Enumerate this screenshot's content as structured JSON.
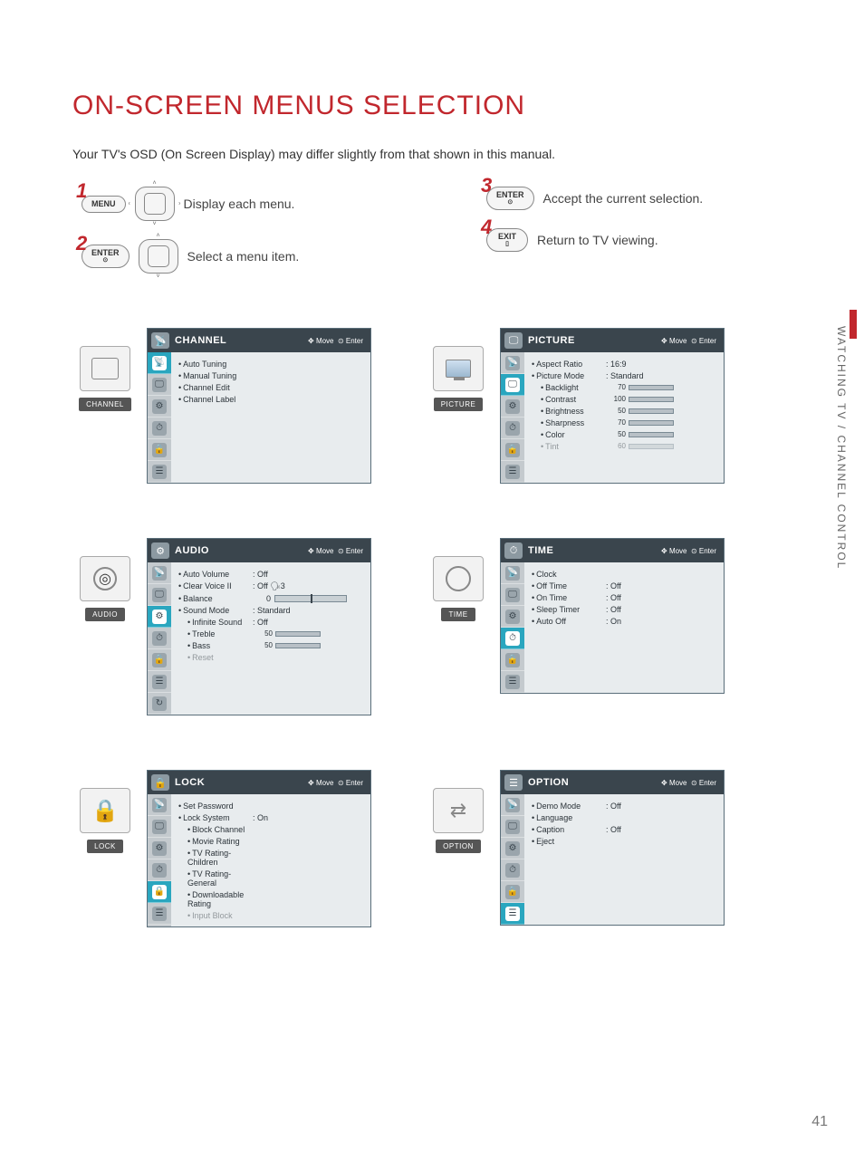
{
  "page": {
    "title": "ON-SCREEN MENUS SELECTION",
    "subtitle": "Your TV's OSD (On Screen Display) may differ slightly from that shown in this manual.",
    "side_label": "WATCHING TV / CHANNEL CONTROL",
    "number": "41"
  },
  "buttons": {
    "menu": "MENU",
    "enter": "ENTER",
    "exit": "EXIT"
  },
  "steps": {
    "s1": {
      "num": "1",
      "text": "Display each menu."
    },
    "s2": {
      "num": "2",
      "text": "Select a menu item."
    },
    "s3": {
      "num": "3",
      "text": "Accept the current selection."
    },
    "s4": {
      "num": "4",
      "text": "Return to TV viewing."
    }
  },
  "hints": {
    "move": "Move",
    "enter": "Enter"
  },
  "nav_icons": [
    "📡",
    "🖵",
    "⚙",
    "⏱",
    "🔒",
    "☰"
  ],
  "menus": {
    "channel": {
      "title": "CHANNEL",
      "thumb": "CHANNEL",
      "active_index": 0,
      "items": [
        {
          "label": "Auto Tuning"
        },
        {
          "label": "Manual Tuning"
        },
        {
          "label": "Channel Edit"
        },
        {
          "label": "Channel Label"
        }
      ]
    },
    "picture": {
      "title": "PICTURE",
      "thumb": "PICTURE",
      "active_index": 1,
      "items": [
        {
          "label": "Aspect Ratio",
          "value": ": 16:9"
        },
        {
          "label": "Picture Mode",
          "value": ": Standard"
        },
        {
          "label": "Backlight",
          "num": "70",
          "pct": 70,
          "sub": true
        },
        {
          "label": "Contrast",
          "num": "100",
          "pct": 100,
          "sub": true
        },
        {
          "label": "Brightness",
          "num": "50",
          "pct": 50,
          "sub": true
        },
        {
          "label": "Sharpness",
          "num": "70",
          "pct": 70,
          "sub": true
        },
        {
          "label": "Color",
          "num": "50",
          "pct": 50,
          "sub": true
        },
        {
          "label": "Tint",
          "num": "60",
          "pct": 60,
          "sub": true,
          "faded": true
        }
      ]
    },
    "audio": {
      "title": "AUDIO",
      "thumb": "AUDIO",
      "active_index": 2,
      "extra_nav": "↻",
      "items": [
        {
          "label": "Auto Volume",
          "value": ": Off"
        },
        {
          "label": "Clear Voice II",
          "value": ": Off 🗣3"
        },
        {
          "label": "Balance",
          "balance": "0"
        },
        {
          "label": "Sound Mode",
          "value": ": Standard"
        },
        {
          "label": "Infinite Sound",
          "value": ": Off",
          "sub": true
        },
        {
          "label": "Treble",
          "num": "50",
          "pct": 50,
          "sub": true
        },
        {
          "label": "Bass",
          "num": "50",
          "pct": 50,
          "sub": true
        },
        {
          "label": "Reset",
          "sub": true,
          "faded": true
        }
      ]
    },
    "time": {
      "title": "TIME",
      "thumb": "TIME",
      "active_index": 3,
      "items": [
        {
          "label": "Clock"
        },
        {
          "label": "Off Time",
          "value": ": Off"
        },
        {
          "label": "On Time",
          "value": ": Off"
        },
        {
          "label": "Sleep Timer",
          "value": ": Off"
        },
        {
          "label": "Auto Off",
          "value": ": On"
        }
      ]
    },
    "lock": {
      "title": "LOCK",
      "thumb": "LOCK",
      "active_index": 4,
      "items": [
        {
          "label": "Set Password"
        },
        {
          "label": "Lock System",
          "value": ": On"
        },
        {
          "label": "Block Channel",
          "sub": true
        },
        {
          "label": "Movie Rating",
          "sub": true
        },
        {
          "label": "TV Rating-Children",
          "sub": true
        },
        {
          "label": "TV Rating-General",
          "sub": true
        },
        {
          "label": "Downloadable Rating",
          "sub": true
        },
        {
          "label": "Input Block",
          "sub": true,
          "faded": true
        }
      ]
    },
    "option": {
      "title": "OPTION",
      "thumb": "OPTION",
      "active_index": 5,
      "items": [
        {
          "label": "Demo Mode",
          "value": ": Off"
        },
        {
          "label": "Language"
        },
        {
          "label": "Caption",
          "value": ": Off"
        },
        {
          "label": "Eject"
        }
      ]
    }
  },
  "colors": {
    "accent": "#c1272d",
    "slider_fill": "#e25b2a",
    "osd_header": "#3a454d",
    "nav_active": "#2aa6bf"
  }
}
